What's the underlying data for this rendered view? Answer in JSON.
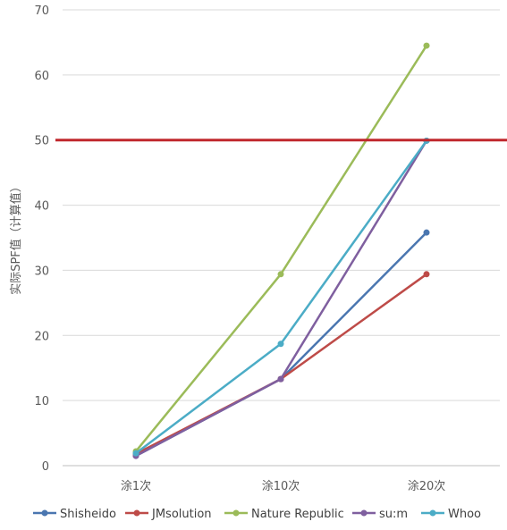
{
  "chart_data": {
    "type": "line",
    "title": "",
    "xlabel": "",
    "ylabel": "实际SPF值（计算值）",
    "categories": [
      "涂1次",
      "涂10次",
      "涂20次"
    ],
    "ylim": [
      0,
      70
    ],
    "yticks": [
      0,
      10,
      20,
      30,
      40,
      50,
      60,
      70
    ],
    "grid": true,
    "legend": "bottom",
    "reference_line": {
      "y": 50,
      "color": "#c0282d"
    },
    "series": [
      {
        "name": "Shisheido",
        "color": "#4a76b0",
        "values": [
          1.5,
          13.3,
          35.8
        ]
      },
      {
        "name": "JMsolution",
        "color": "#be4b48",
        "values": [
          1.8,
          13.3,
          29.4
        ]
      },
      {
        "name": "Nature Republic",
        "color": "#9bbb59",
        "values": [
          2.2,
          29.4,
          64.5
        ]
      },
      {
        "name": "su:m",
        "color": "#7f5f9f",
        "values": [
          1.5,
          13.3,
          49.9
        ]
      },
      {
        "name": "Whoo",
        "color": "#4bacc6",
        "values": [
          1.9,
          18.7,
          49.9
        ]
      }
    ]
  }
}
